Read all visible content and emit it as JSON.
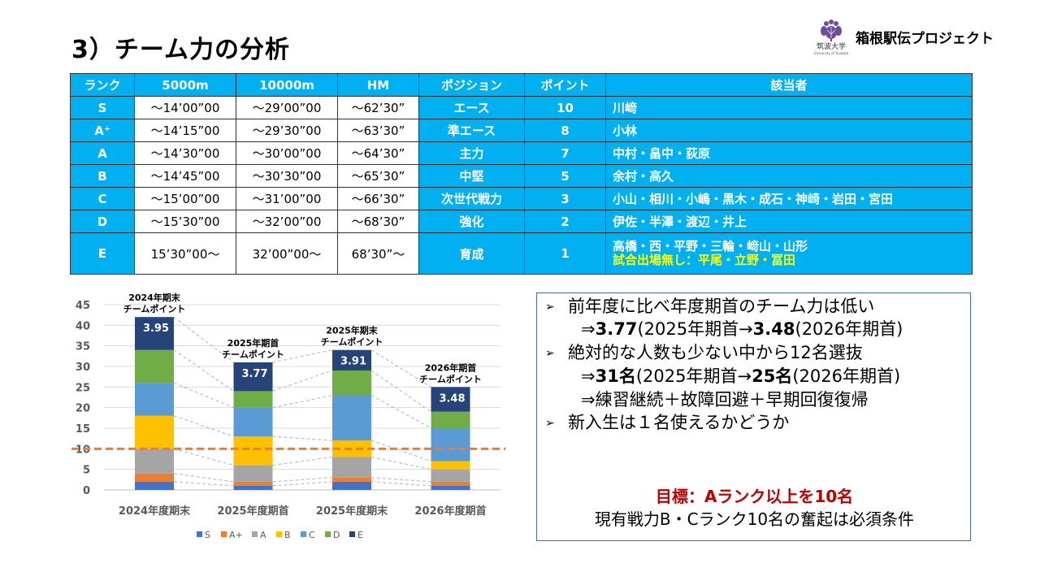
{
  "header": {
    "title": "3）チーム力の分析",
    "university_name_ja": "筑波大学",
    "university_name_en": "University of Tsukuba",
    "project_name": "箱根駅伝プロジェクト"
  },
  "rank_table": {
    "columns": [
      "ランク",
      "5000m",
      "10000m",
      "HM",
      "ポジション",
      "ポイント",
      "該当者"
    ],
    "rows": [
      {
        "rank": "S",
        "m5000": "～14’00”00",
        "m10000": "～29’00”00",
        "hm": "～62’30”",
        "position": "エース",
        "points": "10",
        "members": "川﨑",
        "note": ""
      },
      {
        "rank": "A⁺",
        "m5000": "～14’15”00",
        "m10000": "～29’30”00",
        "hm": "～63’30”",
        "position": "準エース",
        "points": "8",
        "members": "小林",
        "note": ""
      },
      {
        "rank": "A",
        "m5000": "～14’30”00",
        "m10000": "～30’00”00",
        "hm": "～64’30”",
        "position": "主力",
        "points": "7",
        "members": "中村・畠中・荻原",
        "note": ""
      },
      {
        "rank": "B",
        "m5000": "～14’45”00",
        "m10000": "～30’30”00",
        "hm": "～65’30”",
        "position": "中堅",
        "points": "5",
        "members": "余村・高久",
        "note": ""
      },
      {
        "rank": "C",
        "m5000": "～15’00”00",
        "m10000": "～31’00”00",
        "hm": "～66’30”",
        "position": "次世代戦力",
        "points": "3",
        "members": "小山・相川・小嶋・黒木・成石・神崎・岩田・宮田",
        "note": ""
      },
      {
        "rank": "D",
        "m5000": "～15’30”00",
        "m10000": "～32’00”00",
        "hm": "～68’30”",
        "position": "強化",
        "points": "2",
        "members": "伊佐・半澤・渡辺・井上",
        "note": ""
      },
      {
        "rank": "E",
        "m5000": "15’30”00～",
        "m10000": "32’00”00～",
        "hm": "68’30”～",
        "position": "育成",
        "points": "1",
        "members": "高橋・西・平野・三輪・﨑山・山形",
        "note": "試合出場無し：平尾・立野・冨田"
      }
    ]
  },
  "chart_data": {
    "type": "bar",
    "stacked": true,
    "title": "",
    "xlabel": "",
    "ylabel": "",
    "ylim": [
      0,
      45
    ],
    "yticks": [
      0,
      5,
      10,
      15,
      20,
      25,
      30,
      35,
      40,
      45
    ],
    "grid": true,
    "legend_position": "bottom",
    "categories": [
      "2024年度期末",
      "2025年度期首",
      "2025年度期末",
      "2026年度期首"
    ],
    "series": [
      {
        "name": "S",
        "color": "#4472c4",
        "values": [
          2,
          1,
          2,
          1
        ]
      },
      {
        "name": "A+",
        "color": "#ed7d31",
        "values": [
          2,
          1,
          1,
          1
        ]
      },
      {
        "name": "A",
        "color": "#a5a5a5",
        "values": [
          6,
          4,
          5,
          3
        ]
      },
      {
        "name": "B",
        "color": "#ffc000",
        "values": [
          8,
          7,
          4,
          2
        ]
      },
      {
        "name": "C",
        "color": "#5b9bd5",
        "values": [
          8,
          7,
          11,
          8
        ]
      },
      {
        "name": "D",
        "color": "#70ad47",
        "values": [
          8,
          4,
          6,
          4
        ]
      },
      {
        "name": "E",
        "color": "#264478",
        "values": [
          8,
          7,
          5,
          6
        ]
      }
    ],
    "bar_labels": [
      "3.95",
      "3.77",
      "3.91",
      "3.48"
    ],
    "annotations": [
      {
        "line1": "2024年期末",
        "line2": "チームポイント"
      },
      {
        "line1": "2025年期首",
        "line2": "チームポイント"
      },
      {
        "line1": "2025年期末",
        "line2": "チームポイント"
      },
      {
        "line1": "2026年期首",
        "line2": "チームポイント"
      }
    ],
    "reference_line": {
      "value": 10,
      "color": "#ed7d31",
      "style": "dashed"
    },
    "connector_lines": {
      "style": "dashed",
      "color": "#bfbfbf"
    }
  },
  "summary": {
    "bullet1": "前年度に比べ年度期首のチーム力は低い",
    "bullet1_sub": {
      "arrow": "⇒",
      "v1": "3.77",
      "t1": "(2025年期首→",
      "v2": "3.48",
      "t2": "(2026年期首)"
    },
    "bullet2": "絶対的な人数も少ない中から12名選抜",
    "bullet2_sub": {
      "arrow": "⇒",
      "v1": "31名",
      "t1": "(2025年期首→",
      "v2": "25名",
      "t2": "(2026年期首)"
    },
    "bullet2_sub2": "⇒練習継続＋故障回避＋早期回復復帰",
    "bullet3": "新入生は１名使えるかどうか",
    "bullet_marker": "➢",
    "goal": "目標：Aランク以上を10名",
    "condition": "現有戦力B・Cランク10名の奮起は必須条件"
  }
}
